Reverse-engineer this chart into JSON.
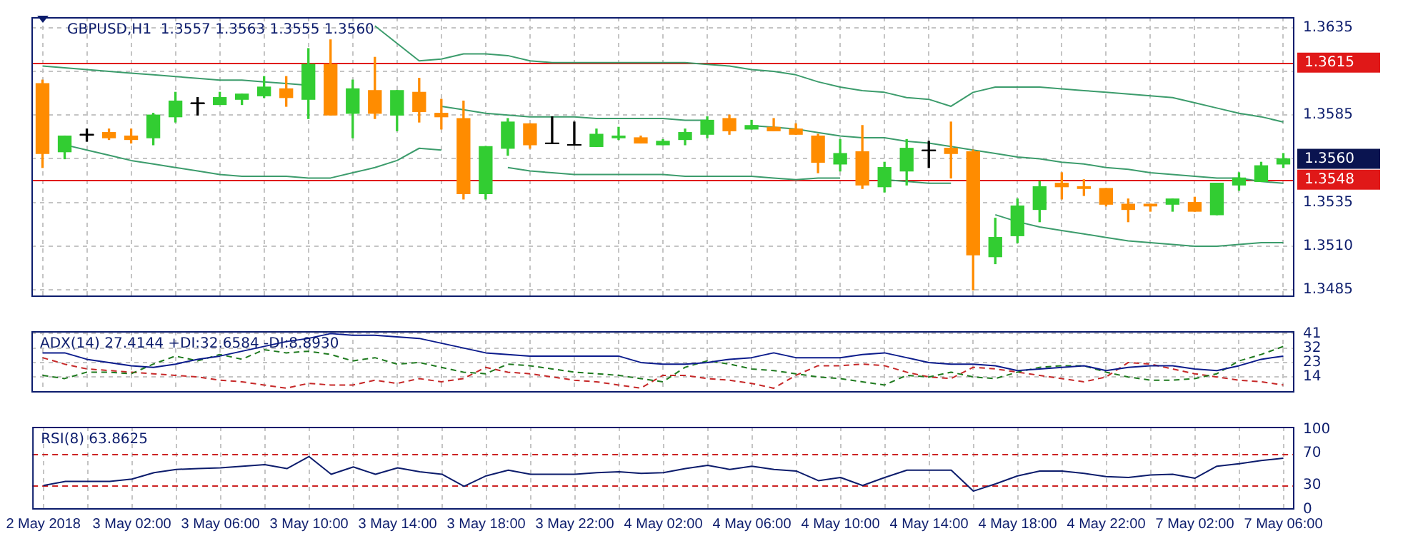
{
  "chart_data": [
    {
      "type": "candlestick",
      "title": "GBPUSD,H1  1.3557 1.3563 1.3555 1.3560",
      "categories": [
        null,
        null,
        null,
        null,
        null,
        null,
        null,
        null,
        null,
        null,
        null,
        null,
        null,
        null,
        null,
        null,
        null,
        null,
        null,
        null,
        null,
        null,
        null,
        null,
        null,
        null,
        null,
        null,
        null,
        null,
        null,
        null,
        null,
        null,
        null,
        null,
        null,
        null,
        null,
        null,
        null,
        null,
        null,
        null,
        null,
        null,
        null,
        null,
        null,
        null,
        null,
        null,
        null,
        null,
        null,
        null,
        null
      ],
      "ohlc": [
        [
          1.3603,
          1.3605,
          1.3555,
          1.3563
        ],
        [
          1.3564,
          1.3573,
          1.356,
          1.3573
        ],
        [
          1.3574,
          1.3577,
          1.357,
          1.3574
        ],
        [
          1.3575,
          1.3577,
          1.3571,
          1.3572
        ],
        [
          1.3573,
          1.3577,
          1.3569,
          1.3571
        ],
        [
          1.3572,
          1.3586,
          1.3568,
          1.3585
        ],
        [
          1.3584,
          1.3598,
          1.3581,
          1.3593
        ],
        [
          1.3592,
          1.3595,
          1.3585,
          1.3592
        ],
        [
          1.3591,
          1.3598,
          1.3591,
          1.3595
        ],
        [
          1.3594,
          1.3597,
          1.3591,
          1.3597
        ],
        [
          1.3596,
          1.3607,
          1.3595,
          1.3601
        ],
        [
          1.36,
          1.3607,
          1.359,
          1.3595
        ],
        [
          1.3594,
          1.3623,
          1.3583,
          1.3614
        ],
        [
          1.3614,
          1.3628,
          1.3585,
          1.3585
        ],
        [
          1.3586,
          1.3605,
          1.3572,
          1.36
        ],
        [
          1.3599,
          1.3618,
          1.3583,
          1.3586
        ],
        [
          1.3585,
          1.3599,
          1.3576,
          1.3599
        ],
        [
          1.3598,
          1.3606,
          1.3581,
          1.3587
        ],
        [
          1.3586,
          1.3594,
          1.3577,
          1.3584
        ],
        [
          1.3583,
          1.3593,
          1.3537,
          1.354
        ],
        [
          1.354,
          1.3567,
          1.3537,
          1.3567
        ],
        [
          1.3566,
          1.3583,
          1.3562,
          1.3581
        ],
        [
          1.358,
          1.358,
          1.3566,
          1.3568
        ],
        [
          1.3569,
          1.3584,
          1.3569,
          1.3569
        ],
        [
          1.3568,
          1.3581,
          1.3568,
          1.3568
        ],
        [
          1.3567,
          1.3577,
          1.3567,
          1.3574
        ],
        [
          1.3572,
          1.3578,
          1.3571,
          1.3573
        ],
        [
          1.3572,
          1.3573,
          1.3569,
          1.3569
        ],
        [
          1.3568,
          1.3571,
          1.3568,
          1.357
        ],
        [
          1.3571,
          1.3577,
          1.3568,
          1.3575
        ],
        [
          1.3574,
          1.3584,
          1.3572,
          1.3582
        ],
        [
          1.3583,
          1.3585,
          1.3574,
          1.3576
        ],
        [
          1.3577,
          1.3582,
          1.3577,
          1.3579
        ],
        [
          1.3578,
          1.3583,
          1.3576,
          1.3576
        ],
        [
          1.3577,
          1.358,
          1.3574,
          1.3574
        ],
        [
          1.3573,
          1.3574,
          1.3552,
          1.3558
        ],
        [
          1.3557,
          1.3571,
          1.3553,
          1.3563
        ],
        [
          1.3564,
          1.3579,
          1.3543,
          1.3545
        ],
        [
          1.3544,
          1.3558,
          1.3541,
          1.3555
        ],
        [
          1.3553,
          1.3571,
          1.3545,
          1.3566
        ],
        [
          1.3565,
          1.357,
          1.3555,
          1.3565
        ],
        [
          1.3566,
          1.3581,
          1.3549,
          1.3563
        ],
        [
          1.3564,
          1.3565,
          1.3485,
          1.3505
        ],
        [
          1.3504,
          1.3526,
          1.35,
          1.3515
        ],
        [
          1.3516,
          1.3537,
          1.3512,
          1.3533
        ],
        [
          1.3531,
          1.3547,
          1.3524,
          1.3544
        ],
        [
          1.3546,
          1.3552,
          1.3537,
          1.3544
        ],
        [
          1.3544,
          1.3548,
          1.3539,
          1.3543
        ],
        [
          1.3543,
          1.3543,
          1.3533,
          1.3534
        ],
        [
          1.3534,
          1.3537,
          1.3524,
          1.3531
        ],
        [
          1.3534,
          1.3534,
          1.353,
          1.3533
        ],
        [
          1.3534,
          1.3537,
          1.353,
          1.3537
        ],
        [
          1.3535,
          1.3538,
          1.353,
          1.353
        ],
        [
          1.3528,
          1.3546,
          1.3528,
          1.3546
        ],
        [
          1.3545,
          1.3552,
          1.3542,
          1.3549
        ],
        [
          1.3547,
          1.3558,
          1.3547,
          1.3556
        ],
        [
          1.3557,
          1.3563,
          1.3555,
          1.356
        ]
      ],
      "colors": [
        "#ff8c00",
        "#32cd32",
        "#000000",
        "#ff8c00",
        "#ff8c00",
        "#32cd32",
        "#32cd32",
        "#000000",
        "#32cd32",
        "#32cd32",
        "#32cd32",
        "#ff8c00",
        "#32cd32",
        "#ff8c00",
        "#32cd32",
        "#ff8c00",
        "#32cd32",
        "#ff8c00",
        "#ff8c00",
        "#ff8c00",
        "#32cd32",
        "#32cd32",
        "#ff8c00",
        "#000000",
        "#000000",
        "#32cd32",
        "#32cd32",
        "#ff8c00",
        "#32cd32",
        "#32cd32",
        "#32cd32",
        "#ff8c00",
        "#32cd32",
        "#ff8c00",
        "#ff8c00",
        "#ff8c00",
        "#32cd32",
        "#ff8c00",
        "#32cd32",
        "#32cd32",
        "#000000",
        "#ff8c00",
        "#ff8c00",
        "#32cd32",
        "#32cd32",
        "#32cd32",
        "#ff8c00",
        "#ff8c00",
        "#ff8c00",
        "#ff8c00",
        "#ff8c00",
        "#32cd32",
        "#ff8c00",
        "#32cd32",
        "#32cd32",
        "#32cd32",
        "#32cd32"
      ],
      "series": [
        {
          "type": "line",
          "color": "#3c9c6c",
          "values": [
            null,
            null,
            null,
            null,
            null,
            null,
            null,
            null,
            null,
            null,
            null,
            null,
            null,
            null,
            null,
            1.3636,
            1.3626,
            1.3616,
            1.3617,
            1.362,
            1.362,
            1.3619,
            1.3616,
            1.3615,
            1.3615,
            1.3615,
            1.3615,
            1.3615,
            1.3615,
            1.3615,
            1.3614,
            1.3613,
            1.3611,
            1.361,
            1.3608,
            1.3604,
            1.3601,
            1.3599,
            1.3598,
            1.3595,
            1.3594,
            1.359,
            1.3598,
            1.3601,
            1.3601,
            1.3601,
            1.36,
            1.3599,
            1.3598,
            1.3597,
            1.3596,
            1.3595,
            1.3592,
            1.3589,
            1.3586,
            1.3584,
            1.3581
          ]
        },
        {
          "type": "line",
          "color": "#3c9c6c",
          "values": [
            1.3613,
            1.3612,
            1.3611,
            1.361,
            1.3609,
            1.3608,
            1.3607,
            1.3606,
            1.3605,
            1.3605,
            1.3604,
            1.3603,
            1.3602,
            null,
            null,
            null,
            null,
            null,
            1.359,
            1.3588,
            1.3586,
            1.3585,
            1.3584,
            1.3584,
            1.3584,
            1.3583,
            1.3583,
            1.3583,
            1.3583,
            1.3582,
            1.3582,
            null,
            1.3579,
            1.3578,
            1.3577,
            1.3575,
            1.3573,
            1.3572,
            1.3572,
            1.357,
            1.3569,
            1.3567,
            1.3565,
            1.3563,
            1.3561,
            1.356,
            1.3558,
            1.3557,
            1.3555,
            1.3554,
            1.3552,
            1.3551,
            1.355,
            1.3549,
            1.3549,
            1.3547,
            1.3546
          ]
        },
        {
          "type": "line",
          "color": "#3c9c6c",
          "values": [
            null,
            1.3568,
            1.3565,
            1.3562,
            1.3559,
            1.3557,
            1.3555,
            1.3553,
            1.3551,
            1.355,
            1.355,
            1.355,
            1.3549,
            1.3549,
            1.3552,
            1.3555,
            1.3559,
            1.3566,
            1.3565,
            null,
            null,
            1.3555,
            1.3553,
            1.3552,
            1.3551,
            1.3551,
            1.3551,
            1.3551,
            1.3551,
            1.355,
            1.355,
            1.355,
            1.355,
            1.3549,
            1.3548,
            1.3549,
            1.3549,
            null,
            1.3548,
            1.3547,
            1.3546,
            1.3546,
            null,
            1.3528,
            1.3524,
            1.3521,
            1.3519,
            1.3517,
            1.3515,
            1.3513,
            1.3512,
            1.3511,
            1.351,
            1.351,
            1.3511,
            1.3512,
            1.3512
          ]
        }
      ],
      "ylim": [
        1.3481,
        1.3641
      ],
      "yticks": [
        1.3635,
        {
          "value": 1.361,
          "label": null
        },
        1.3585,
        {
          "value": 1.356,
          "label": null
        },
        1.3535,
        {
          "value": 1.351,
          "label": "1.3510"
        },
        1.3485
      ],
      "grid": true,
      "tick_labels": "y",
      "marker": "none",
      "ref_lines": [
        {
          "axis": "y",
          "value": 1.3615,
          "label": "1.3615",
          "color": "#e01818"
        },
        {
          "axis": "y",
          "value": 1.3548,
          "label": "1.3548",
          "color": "#e01818"
        }
      ],
      "annotations": [
        "1.3560"
      ]
    },
    {
      "type": "line",
      "title": "ADX(14) 27.4144 +DI:32.6584 -DI:8.8930",
      "categories": [
        null,
        null,
        null,
        null,
        null,
        null,
        null,
        null,
        null,
        null,
        null,
        null,
        null,
        null,
        null,
        null,
        null,
        null,
        null,
        null,
        null,
        null,
        null,
        null,
        null,
        null,
        null,
        null,
        null,
        null,
        null,
        null,
        null,
        null,
        null,
        null,
        null,
        null,
        null,
        null,
        null,
        null,
        null,
        null,
        null,
        null,
        null,
        null,
        null,
        null,
        null,
        null,
        null,
        null,
        null,
        null,
        null
      ],
      "series": [
        {
          "color": "#0c1c8c",
          "line_style": "solid",
          "values": [
            29,
            29,
            25,
            23,
            21,
            20,
            22,
            25,
            27,
            30,
            33,
            36,
            38,
            41,
            40,
            40,
            39,
            38,
            35,
            32,
            29,
            28,
            27,
            27,
            27,
            27,
            27,
            23,
            22,
            22,
            23,
            25,
            26,
            29,
            26,
            26,
            26,
            28,
            29,
            26,
            23,
            22,
            22,
            21,
            18,
            19,
            20,
            21,
            18,
            20,
            21,
            21,
            19,
            18,
            21,
            25,
            27
          ]
        },
        {
          "color": "#1f7a1f",
          "line_style": "dashed",
          "values": [
            15,
            13,
            17,
            17,
            16,
            22,
            27,
            24,
            28,
            25,
            31,
            29,
            30,
            28,
            24,
            26,
            22,
            23,
            20,
            17,
            16,
            22,
            21,
            19,
            17,
            16,
            15,
            13,
            11,
            20,
            24,
            22,
            19,
            18,
            16,
            14,
            13,
            11,
            9,
            15,
            14,
            17,
            14,
            13,
            17,
            20,
            21,
            21,
            17,
            14,
            12,
            12,
            13,
            16,
            24,
            28,
            33
          ]
        },
        {
          "color": "#c62828",
          "line_style": "dashed",
          "values": [
            26,
            22,
            19,
            18,
            17,
            16,
            15,
            14,
            12,
            11,
            9,
            7,
            10,
            9,
            9,
            12,
            10,
            13,
            11,
            13,
            20,
            17,
            16,
            14,
            12,
            11,
            9,
            7,
            15,
            15,
            13,
            12,
            10,
            7,
            15,
            21,
            21,
            22,
            21,
            17,
            14,
            13,
            20,
            19,
            17,
            15,
            13,
            11,
            14,
            23,
            22,
            19,
            16,
            14,
            12,
            11,
            9
          ]
        }
      ],
      "ylim": [
        4.3,
        42.5
      ],
      "yticks": [
        41,
        32,
        23,
        14
      ],
      "grid": true,
      "tick_labels": "y",
      "marker": "none"
    },
    {
      "type": "line",
      "title": "RSI(8) 63.8625",
      "categories": [
        "2 May 2018",
        null,
        null,
        null,
        "3 May 02:00",
        null,
        null,
        null,
        "3 May 06:00",
        null,
        null,
        null,
        "3 May 10:00",
        null,
        null,
        null,
        "3 May 14:00",
        null,
        null,
        null,
        "3 May 18:00",
        null,
        null,
        null,
        "3 May 22:00",
        null,
        null,
        null,
        "4 May 02:00",
        null,
        null,
        null,
        "4 May 06:00",
        null,
        null,
        null,
        "4 May 10:00",
        null,
        null,
        null,
        "4 May 14:00",
        null,
        null,
        null,
        "4 May 18:00",
        null,
        null,
        null,
        "4 May 22:00",
        null,
        null,
        null,
        "7 May 02:00",
        null,
        null,
        null,
        "7 May 06:00"
      ],
      "series": [
        {
          "color": "#0c1c6c",
          "values": [
            30,
            35,
            35,
            35,
            38,
            46,
            50,
            51,
            52,
            54,
            56,
            51,
            66,
            44,
            53,
            44,
            52,
            47,
            44,
            29,
            42,
            49,
            44,
            44,
            44,
            46,
            47,
            45,
            46,
            51,
            55,
            50,
            54,
            50,
            48,
            36,
            40,
            30,
            40,
            49,
            49,
            49,
            23,
            32,
            42,
            48,
            48,
            45,
            41,
            40,
            43,
            44,
            39,
            54,
            57,
            61,
            64
          ]
        }
      ],
      "ylim": [
        0,
        103
      ],
      "yticks": [
        0,
        30,
        70,
        100
      ],
      "grid": "x",
      "marker": "none",
      "ref_lines": [
        {
          "axis": "y",
          "value": 70,
          "color": "#cc2222",
          "line_style": "dashed"
        },
        {
          "axis": "y",
          "value": 30,
          "color": "#cc2222",
          "line_style": "dashed"
        }
      ]
    }
  ]
}
